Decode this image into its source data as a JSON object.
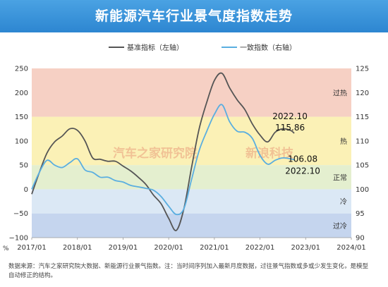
{
  "title": "新能源汽车行业景气度指数走势",
  "footnote": {
    "line1": "数据来源：汽车之家研究院大数据、新能源行业景气指数。注：当时间序列加入最新月度数据，过往景气指数或多或少发生变化，是模型",
    "line2": "自动修正的结构。"
  },
  "watermark": {
    "left": "汽车之家研究院",
    "right": "新浪科技"
  },
  "colors": {
    "base_line": "#555555",
    "consistent_line": "#5aaee0"
  },
  "chart_data": {
    "type": "line",
    "legend": {
      "placement": "top-center"
    },
    "legend_entries": [
      "基准指标（左轴）",
      "一致指数（右轴）"
    ],
    "left_axis": {
      "min": -100,
      "max": 250,
      "ticks": [
        "−100",
        "−50",
        "0",
        "50",
        "100",
        "150",
        "200",
        "250"
      ],
      "unit": "%"
    },
    "right_axis": {
      "min": 90,
      "max": 125,
      "ticks": [
        "90",
        "95",
        "100",
        "105",
        "110",
        "115",
        "120",
        "125"
      ]
    },
    "x_axis": {
      "ticks": [
        "2017/01",
        "2018/01",
        "2019/01",
        "2020/01",
        "2021/01",
        "2022/01",
        "2023/01",
        "2024/01"
      ]
    },
    "zones": [
      {
        "label": "过热",
        "from": 150,
        "to": 250,
        "color": "#f6d0c4"
      },
      {
        "label": "热",
        "from": 50,
        "to": 150,
        "color": "#fbf1b6"
      },
      {
        "label": "正常",
        "from": 0,
        "to": 50,
        "color": "#e4efcf"
      },
      {
        "label": "冷",
        "from": -50,
        "to": 0,
        "color": "#dbe8f5"
      },
      {
        "label": "过冷",
        "from": -100,
        "to": -50,
        "color": "#c5d5ee"
      }
    ],
    "series": [
      {
        "name": "基准指标（左轴）",
        "axis": "left",
        "x": [
          "2017-01",
          "2017-03",
          "2017-05",
          "2017-07",
          "2017-09",
          "2017-11",
          "2018-01",
          "2018-03",
          "2018-05",
          "2018-07",
          "2018-09",
          "2018-11",
          "2019-01",
          "2019-03",
          "2019-05",
          "2019-07",
          "2019-09",
          "2019-11",
          "2020-01",
          "2020-03",
          "2020-05",
          "2020-07",
          "2020-09",
          "2020-11",
          "2021-01",
          "2021-03",
          "2021-05",
          "2021-07",
          "2021-09",
          "2021-11",
          "2022-01",
          "2022-03",
          "2022-05",
          "2022-07",
          "2022-09",
          "2022-10"
        ],
        "values": [
          -10,
          35,
          75,
          98,
          110,
          125,
          122,
          100,
          65,
          62,
          58,
          58,
          48,
          38,
          25,
          10,
          -12,
          -30,
          -60,
          -85,
          -40,
          45,
          125,
          180,
          225,
          240,
          210,
          185,
          165,
          135,
          112,
          98,
          118,
          125,
          122,
          116
        ]
      },
      {
        "name": "一致指数（右轴）",
        "axis": "right",
        "x": [
          "2017-01",
          "2017-03",
          "2017-05",
          "2017-07",
          "2017-09",
          "2017-11",
          "2018-01",
          "2018-03",
          "2018-05",
          "2018-07",
          "2018-09",
          "2018-11",
          "2019-01",
          "2019-03",
          "2019-05",
          "2019-07",
          "2019-09",
          "2019-11",
          "2020-01",
          "2020-03",
          "2020-05",
          "2020-07",
          "2020-09",
          "2020-11",
          "2021-01",
          "2021-03",
          "2021-05",
          "2021-07",
          "2021-09",
          "2021-11",
          "2022-01",
          "2022-03",
          "2022-05",
          "2022-07",
          "2022-09",
          "2022-10"
        ],
        "values": [
          100.0,
          103.5,
          106.0,
          105.0,
          104.5,
          105.5,
          106.3,
          104.0,
          103.5,
          102.5,
          102.5,
          101.8,
          101.5,
          100.8,
          100.5,
          100.2,
          99.8,
          98.5,
          96.5,
          94.8,
          96.0,
          102.0,
          108.0,
          112.0,
          115.5,
          117.5,
          114.0,
          112.0,
          111.8,
          110.5,
          107.0,
          105.2,
          106.0,
          106.5,
          106.3,
          106.1
        ]
      }
    ],
    "annotations": [
      {
        "series": "基准指标（左轴）",
        "date": "2022.10",
        "value": "115.86"
      },
      {
        "series": "一致指数（右轴）",
        "value": "106.08",
        "date": "2022.10"
      }
    ]
  }
}
